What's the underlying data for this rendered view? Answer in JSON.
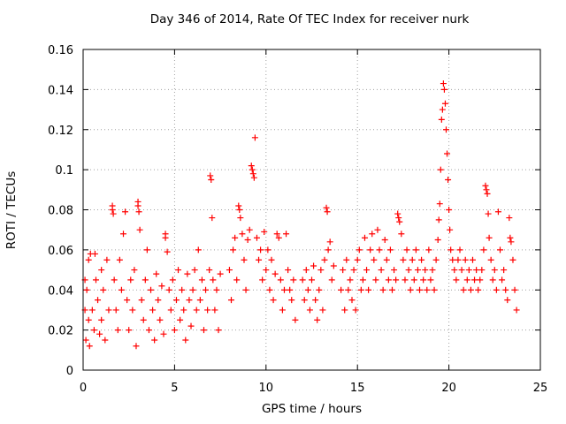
{
  "chart_data": {
    "type": "scatter",
    "title": "Day 346 of 2014, Rate Of TEC Index for receiver nurk",
    "xlabel": "GPS time / hours",
    "ylabel": "ROTI / TECUs",
    "xlim": [
      0,
      25
    ],
    "ylim": [
      0,
      0.16
    ],
    "xticks": [
      0,
      5,
      10,
      15,
      20,
      25
    ],
    "xtick_labels": [
      "0",
      "5",
      "10",
      "15",
      "20",
      "25"
    ],
    "yticks": [
      0,
      0.02,
      0.04,
      0.06,
      0.08,
      0.1,
      0.12,
      0.14,
      0.16
    ],
    "ytick_labels": [
      "0",
      "0.02",
      "0.04",
      "0.06",
      "0.08",
      "0.1",
      "0.12",
      "0.14",
      "0.16"
    ],
    "grid": true,
    "marker": "plus",
    "color": "#ff0000",
    "data_gaps_hours": [
      [
        7.5,
        7.8
      ],
      [
        11.7,
        11.9
      ],
      [
        13.7,
        14.1
      ]
    ],
    "points": [
      [
        0.1,
        0.045
      ],
      [
        0.1,
        0.03
      ],
      [
        0.15,
        0.015
      ],
      [
        0.2,
        0.04
      ],
      [
        0.3,
        0.055
      ],
      [
        0.3,
        0.025
      ],
      [
        0.35,
        0.012
      ],
      [
        0.4,
        0.058
      ],
      [
        0.5,
        0.03
      ],
      [
        0.6,
        0.02
      ],
      [
        0.65,
        0.058
      ],
      [
        0.7,
        0.045
      ],
      [
        0.8,
        0.035
      ],
      [
        0.9,
        0.018
      ],
      [
        1.0,
        0.05
      ],
      [
        1.0,
        0.025
      ],
      [
        1.1,
        0.04
      ],
      [
        1.2,
        0.015
      ],
      [
        1.3,
        0.055
      ],
      [
        1.4,
        0.03
      ],
      [
        1.6,
        0.082
      ],
      [
        1.6,
        0.08
      ],
      [
        1.65,
        0.078
      ],
      [
        1.7,
        0.045
      ],
      [
        1.8,
        0.03
      ],
      [
        1.9,
        0.02
      ],
      [
        2.0,
        0.055
      ],
      [
        2.1,
        0.04
      ],
      [
        2.2,
        0.068
      ],
      [
        2.3,
        0.079
      ],
      [
        2.4,
        0.035
      ],
      [
        2.5,
        0.02
      ],
      [
        2.6,
        0.045
      ],
      [
        2.7,
        0.03
      ],
      [
        2.8,
        0.05
      ],
      [
        2.9,
        0.012
      ],
      [
        3.0,
        0.084
      ],
      [
        3.0,
        0.082
      ],
      [
        3.05,
        0.079
      ],
      [
        3.1,
        0.07
      ],
      [
        3.2,
        0.035
      ],
      [
        3.3,
        0.025
      ],
      [
        3.4,
        0.045
      ],
      [
        3.5,
        0.06
      ],
      [
        3.6,
        0.02
      ],
      [
        3.7,
        0.04
      ],
      [
        3.8,
        0.03
      ],
      [
        3.9,
        0.015
      ],
      [
        4.0,
        0.048
      ],
      [
        4.1,
        0.035
      ],
      [
        4.2,
        0.025
      ],
      [
        4.3,
        0.042
      ],
      [
        4.4,
        0.018
      ],
      [
        4.5,
        0.068
      ],
      [
        4.5,
        0.066
      ],
      [
        4.6,
        0.059
      ],
      [
        4.7,
        0.04
      ],
      [
        4.8,
        0.03
      ],
      [
        4.9,
        0.045
      ],
      [
        5.0,
        0.02
      ],
      [
        5.1,
        0.035
      ],
      [
        5.2,
        0.05
      ],
      [
        5.3,
        0.025
      ],
      [
        5.4,
        0.04
      ],
      [
        5.5,
        0.03
      ],
      [
        5.6,
        0.015
      ],
      [
        5.7,
        0.048
      ],
      [
        5.8,
        0.035
      ],
      [
        5.9,
        0.022
      ],
      [
        6.0,
        0.04
      ],
      [
        6.1,
        0.05
      ],
      [
        6.2,
        0.03
      ],
      [
        6.3,
        0.06
      ],
      [
        6.4,
        0.035
      ],
      [
        6.5,
        0.045
      ],
      [
        6.6,
        0.02
      ],
      [
        6.7,
        0.04
      ],
      [
        6.8,
        0.03
      ],
      [
        6.9,
        0.05
      ],
      [
        6.95,
        0.097
      ],
      [
        7.0,
        0.095
      ],
      [
        7.05,
        0.076
      ],
      [
        7.1,
        0.045
      ],
      [
        7.2,
        0.03
      ],
      [
        7.3,
        0.04
      ],
      [
        7.4,
        0.02
      ],
      [
        7.5,
        0.048
      ],
      [
        8.0,
        0.05
      ],
      [
        8.1,
        0.035
      ],
      [
        8.2,
        0.06
      ],
      [
        8.3,
        0.066
      ],
      [
        8.4,
        0.045
      ],
      [
        8.5,
        0.082
      ],
      [
        8.55,
        0.08
      ],
      [
        8.6,
        0.076
      ],
      [
        8.7,
        0.068
      ],
      [
        8.8,
        0.055
      ],
      [
        8.9,
        0.04
      ],
      [
        9.0,
        0.065
      ],
      [
        9.1,
        0.07
      ],
      [
        9.2,
        0.102
      ],
      [
        9.25,
        0.1
      ],
      [
        9.3,
        0.098
      ],
      [
        9.35,
        0.096
      ],
      [
        9.4,
        0.116
      ],
      [
        9.5,
        0.066
      ],
      [
        9.6,
        0.055
      ],
      [
        9.7,
        0.06
      ],
      [
        9.8,
        0.045
      ],
      [
        9.9,
        0.069
      ],
      [
        10.0,
        0.05
      ],
      [
        10.1,
        0.06
      ],
      [
        10.2,
        0.04
      ],
      [
        10.3,
        0.055
      ],
      [
        10.4,
        0.035
      ],
      [
        10.5,
        0.048
      ],
      [
        10.6,
        0.068
      ],
      [
        10.7,
        0.066
      ],
      [
        10.8,
        0.045
      ],
      [
        10.9,
        0.03
      ],
      [
        11.0,
        0.04
      ],
      [
        11.1,
        0.068
      ],
      [
        11.2,
        0.05
      ],
      [
        11.3,
        0.04
      ],
      [
        11.4,
        0.035
      ],
      [
        11.5,
        0.045
      ],
      [
        11.6,
        0.025
      ],
      [
        12.0,
        0.045
      ],
      [
        12.1,
        0.035
      ],
      [
        12.2,
        0.05
      ],
      [
        12.3,
        0.04
      ],
      [
        12.4,
        0.03
      ],
      [
        12.5,
        0.045
      ],
      [
        12.6,
        0.052
      ],
      [
        12.7,
        0.035
      ],
      [
        12.8,
        0.025
      ],
      [
        12.9,
        0.04
      ],
      [
        13.0,
        0.05
      ],
      [
        13.1,
        0.03
      ],
      [
        13.2,
        0.055
      ],
      [
        13.3,
        0.081
      ],
      [
        13.35,
        0.079
      ],
      [
        13.4,
        0.06
      ],
      [
        13.5,
        0.064
      ],
      [
        13.6,
        0.045
      ],
      [
        13.7,
        0.052
      ],
      [
        14.1,
        0.04
      ],
      [
        14.2,
        0.05
      ],
      [
        14.3,
        0.03
      ],
      [
        14.4,
        0.055
      ],
      [
        14.5,
        0.04
      ],
      [
        14.6,
        0.045
      ],
      [
        14.7,
        0.035
      ],
      [
        14.8,
        0.05
      ],
      [
        14.9,
        0.03
      ],
      [
        15.0,
        0.055
      ],
      [
        15.1,
        0.06
      ],
      [
        15.2,
        0.04
      ],
      [
        15.3,
        0.045
      ],
      [
        15.4,
        0.066
      ],
      [
        15.5,
        0.05
      ],
      [
        15.6,
        0.04
      ],
      [
        15.7,
        0.06
      ],
      [
        15.8,
        0.068
      ],
      [
        15.9,
        0.055
      ],
      [
        16.0,
        0.045
      ],
      [
        16.1,
        0.07
      ],
      [
        16.2,
        0.06
      ],
      [
        16.3,
        0.05
      ],
      [
        16.4,
        0.04
      ],
      [
        16.5,
        0.065
      ],
      [
        16.6,
        0.055
      ],
      [
        16.7,
        0.045
      ],
      [
        16.8,
        0.06
      ],
      [
        16.9,
        0.04
      ],
      [
        17.0,
        0.05
      ],
      [
        17.1,
        0.045
      ],
      [
        17.2,
        0.078
      ],
      [
        17.25,
        0.076
      ],
      [
        17.3,
        0.074
      ],
      [
        17.4,
        0.068
      ],
      [
        17.5,
        0.055
      ],
      [
        17.6,
        0.045
      ],
      [
        17.7,
        0.06
      ],
      [
        17.8,
        0.05
      ],
      [
        17.9,
        0.04
      ],
      [
        18.0,
        0.055
      ],
      [
        18.1,
        0.045
      ],
      [
        18.2,
        0.06
      ],
      [
        18.3,
        0.05
      ],
      [
        18.4,
        0.04
      ],
      [
        18.5,
        0.055
      ],
      [
        18.6,
        0.045
      ],
      [
        18.7,
        0.05
      ],
      [
        18.8,
        0.04
      ],
      [
        18.9,
        0.06
      ],
      [
        19.0,
        0.045
      ],
      [
        19.1,
        0.05
      ],
      [
        19.2,
        0.04
      ],
      [
        19.3,
        0.055
      ],
      [
        19.4,
        0.065
      ],
      [
        19.45,
        0.075
      ],
      [
        19.5,
        0.083
      ],
      [
        19.55,
        0.1
      ],
      [
        19.6,
        0.125
      ],
      [
        19.65,
        0.13
      ],
      [
        19.7,
        0.143
      ],
      [
        19.75,
        0.14
      ],
      [
        19.8,
        0.133
      ],
      [
        19.85,
        0.12
      ],
      [
        19.9,
        0.108
      ],
      [
        19.95,
        0.095
      ],
      [
        20.0,
        0.08
      ],
      [
        20.05,
        0.07
      ],
      [
        20.1,
        0.06
      ],
      [
        20.2,
        0.055
      ],
      [
        20.3,
        0.05
      ],
      [
        20.4,
        0.045
      ],
      [
        20.5,
        0.055
      ],
      [
        20.6,
        0.06
      ],
      [
        20.7,
        0.05
      ],
      [
        20.8,
        0.04
      ],
      [
        20.9,
        0.055
      ],
      [
        21.0,
        0.045
      ],
      [
        21.1,
        0.05
      ],
      [
        21.2,
        0.04
      ],
      [
        21.3,
        0.055
      ],
      [
        21.4,
        0.045
      ],
      [
        21.5,
        0.05
      ],
      [
        21.6,
        0.04
      ],
      [
        21.7,
        0.045
      ],
      [
        21.8,
        0.05
      ],
      [
        21.9,
        0.06
      ],
      [
        22.0,
        0.092
      ],
      [
        22.05,
        0.09
      ],
      [
        22.1,
        0.088
      ],
      [
        22.15,
        0.078
      ],
      [
        22.2,
        0.066
      ],
      [
        22.3,
        0.055
      ],
      [
        22.4,
        0.045
      ],
      [
        22.5,
        0.05
      ],
      [
        22.6,
        0.04
      ],
      [
        22.7,
        0.079
      ],
      [
        22.8,
        0.06
      ],
      [
        22.9,
        0.045
      ],
      [
        23.0,
        0.05
      ],
      [
        23.1,
        0.04
      ],
      [
        23.2,
        0.035
      ],
      [
        23.3,
        0.076
      ],
      [
        23.35,
        0.066
      ],
      [
        23.4,
        0.064
      ],
      [
        23.5,
        0.055
      ],
      [
        23.6,
        0.04
      ],
      [
        23.7,
        0.03
      ]
    ]
  }
}
